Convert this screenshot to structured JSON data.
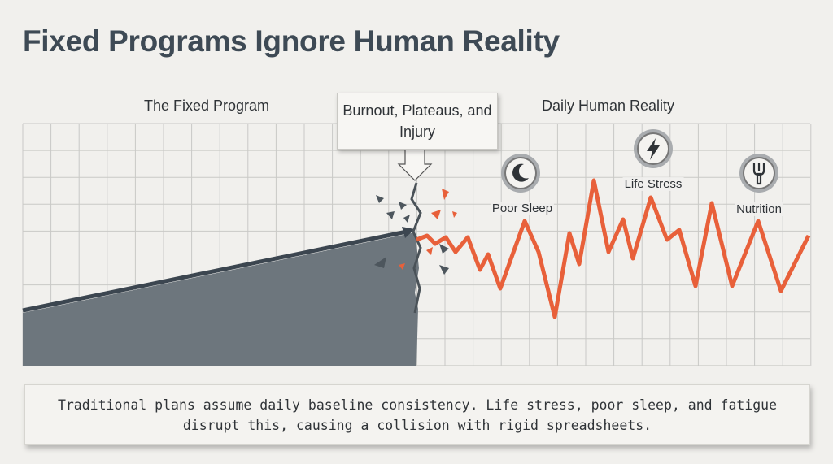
{
  "title": "Fixed Programs Ignore Human Reality",
  "sections": {
    "left": "The Fixed Program",
    "right": "Daily Human Reality"
  },
  "callout": "Burnout, Plateaus, and Injury",
  "factors": [
    {
      "label": "Poor Sleep"
    },
    {
      "label": "Life Stress"
    },
    {
      "label": "Nutrition"
    }
  ],
  "caption": "Traditional plans assume daily baseline consistency. Life stress, poor sleep, and fatigue disrupt this, causing a collision with rigid spreadsheets."
}
